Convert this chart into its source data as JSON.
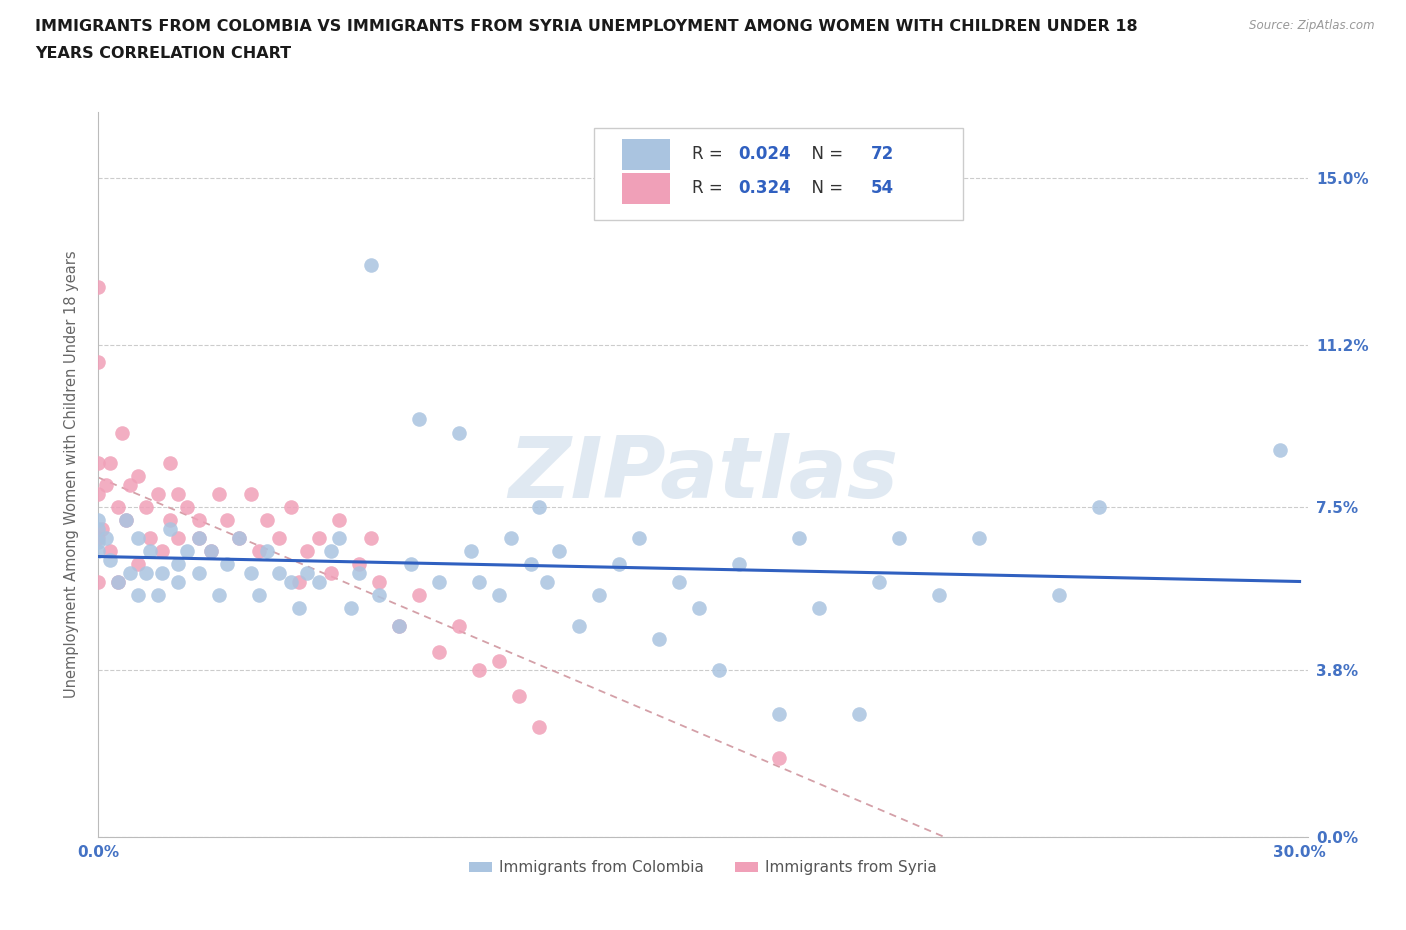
{
  "title_line1": "IMMIGRANTS FROM COLOMBIA VS IMMIGRANTS FROM SYRIA UNEMPLOYMENT AMONG WOMEN WITH CHILDREN UNDER 18",
  "title_line2": "YEARS CORRELATION CHART",
  "source": "Source: ZipAtlas.com",
  "ylabel": "Unemployment Among Women with Children Under 18 years",
  "xmin": 0.0,
  "xmax": 0.3,
  "ymin": 0.0,
  "ymax": 0.165,
  "ytick_vals": [
    0.0,
    0.038,
    0.075,
    0.112,
    0.15
  ],
  "ytick_labels": [
    "0.0%",
    "3.8%",
    "7.5%",
    "11.2%",
    "15.0%"
  ],
  "xtick_vals": [
    0.0,
    0.05,
    0.1,
    0.15,
    0.2,
    0.25,
    0.3
  ],
  "xtick_labels": [
    "0.0%",
    "",
    "",
    "",
    "",
    "",
    "30.0%"
  ],
  "colombia_R": 0.024,
  "colombia_N": 72,
  "syria_R": 0.324,
  "syria_N": 54,
  "colombia_fill": "#aac4e0",
  "syria_fill": "#f0a0b8",
  "colombia_line": "#3060c0",
  "syria_line": "#e08898",
  "watermark_text": "ZIPatlas",
  "legend_label_colombia": "Immigrants from Colombia",
  "legend_label_syria": "Immigrants from Syria",
  "colombia_x": [
    0.0,
    0.0,
    0.0,
    0.0,
    0.002,
    0.003,
    0.005,
    0.007,
    0.008,
    0.01,
    0.01,
    0.012,
    0.013,
    0.015,
    0.016,
    0.018,
    0.02,
    0.02,
    0.022,
    0.025,
    0.025,
    0.028,
    0.03,
    0.032,
    0.035,
    0.038,
    0.04,
    0.042,
    0.045,
    0.048,
    0.05,
    0.052,
    0.055,
    0.058,
    0.06,
    0.063,
    0.065,
    0.068,
    0.07,
    0.075,
    0.078,
    0.08,
    0.085,
    0.09,
    0.093,
    0.095,
    0.1,
    0.103,
    0.108,
    0.11,
    0.112,
    0.115,
    0.12,
    0.125,
    0.13,
    0.135,
    0.14,
    0.145,
    0.15,
    0.155,
    0.16,
    0.17,
    0.175,
    0.18,
    0.19,
    0.195,
    0.2,
    0.21,
    0.22,
    0.24,
    0.25,
    0.295
  ],
  "colombia_y": [
    0.065,
    0.067,
    0.07,
    0.072,
    0.068,
    0.063,
    0.058,
    0.072,
    0.06,
    0.055,
    0.068,
    0.06,
    0.065,
    0.055,
    0.06,
    0.07,
    0.062,
    0.058,
    0.065,
    0.06,
    0.068,
    0.065,
    0.055,
    0.062,
    0.068,
    0.06,
    0.055,
    0.065,
    0.06,
    0.058,
    0.052,
    0.06,
    0.058,
    0.065,
    0.068,
    0.052,
    0.06,
    0.13,
    0.055,
    0.048,
    0.062,
    0.095,
    0.058,
    0.092,
    0.065,
    0.058,
    0.055,
    0.068,
    0.062,
    0.075,
    0.058,
    0.065,
    0.048,
    0.055,
    0.062,
    0.068,
    0.045,
    0.058,
    0.052,
    0.038,
    0.062,
    0.028,
    0.068,
    0.052,
    0.028,
    0.058,
    0.068,
    0.055,
    0.068,
    0.055,
    0.075,
    0.088
  ],
  "syria_x": [
    0.0,
    0.0,
    0.0,
    0.0,
    0.0,
    0.0,
    0.001,
    0.002,
    0.003,
    0.003,
    0.005,
    0.005,
    0.006,
    0.007,
    0.008,
    0.01,
    0.01,
    0.012,
    0.013,
    0.015,
    0.016,
    0.018,
    0.018,
    0.02,
    0.02,
    0.022,
    0.025,
    0.025,
    0.028,
    0.03,
    0.032,
    0.035,
    0.038,
    0.04,
    0.042,
    0.045,
    0.048,
    0.05,
    0.052,
    0.055,
    0.058,
    0.06,
    0.065,
    0.068,
    0.07,
    0.075,
    0.08,
    0.085,
    0.09,
    0.095,
    0.1,
    0.105,
    0.11,
    0.17
  ],
  "syria_y": [
    0.125,
    0.108,
    0.085,
    0.078,
    0.068,
    0.058,
    0.07,
    0.08,
    0.085,
    0.065,
    0.075,
    0.058,
    0.092,
    0.072,
    0.08,
    0.082,
    0.062,
    0.075,
    0.068,
    0.078,
    0.065,
    0.072,
    0.085,
    0.078,
    0.068,
    0.075,
    0.068,
    0.072,
    0.065,
    0.078,
    0.072,
    0.068,
    0.078,
    0.065,
    0.072,
    0.068,
    0.075,
    0.058,
    0.065,
    0.068,
    0.06,
    0.072,
    0.062,
    0.068,
    0.058,
    0.048,
    0.055,
    0.042,
    0.048,
    0.038,
    0.04,
    0.032,
    0.025,
    0.018
  ]
}
